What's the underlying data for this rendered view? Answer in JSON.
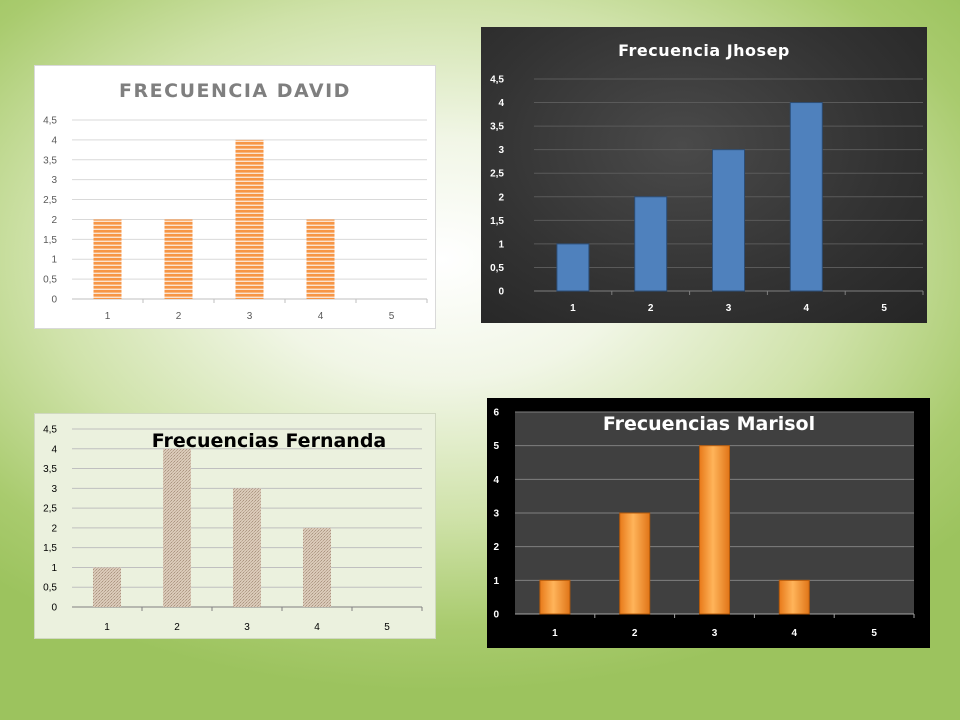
{
  "chart_data": [
    {
      "id": "david",
      "type": "bar",
      "title": "FRECUENCIA DAVID",
      "categories": [
        "1",
        "2",
        "3",
        "4",
        "5"
      ],
      "values": [
        2,
        2,
        4,
        2,
        0
      ],
      "ylim": [
        0,
        4.5
      ],
      "yticks": [
        "0",
        "0,5",
        "1",
        "1,5",
        "2",
        "2,5",
        "3",
        "3,5",
        "4",
        "4,5"
      ],
      "grid": true,
      "colors": {
        "background": "#ffffff",
        "bar": "#f79646",
        "bar_stripe": "#fbe3cf",
        "grid": "#d9d9d9",
        "text": "#595959",
        "title": "#7f7f7f"
      }
    },
    {
      "id": "jhosep",
      "type": "bar",
      "title": "Frecuencia  Jhosep",
      "categories": [
        "1",
        "2",
        "3",
        "4",
        "5"
      ],
      "values": [
        1,
        2,
        3,
        4,
        0
      ],
      "ylim": [
        0,
        4.5
      ],
      "yticks": [
        "0",
        "0,5",
        "1",
        "1,5",
        "2",
        "2,5",
        "3",
        "3,5",
        "4",
        "4,5"
      ],
      "grid": true,
      "colors": {
        "background": "#3a3a3a",
        "bar": "#4f81bd",
        "grid": "#5a5a5a",
        "text": "#ffffff",
        "title": "#ffffff"
      }
    },
    {
      "id": "fernanda",
      "type": "bar",
      "title": "Frecuencias Fernanda",
      "categories": [
        "1",
        "2",
        "3",
        "4",
        "5"
      ],
      "values": [
        1,
        4,
        3,
        2,
        0
      ],
      "ylim": [
        0,
        4.5
      ],
      "yticks": [
        "0",
        "0,5",
        "1",
        "1,5",
        "2",
        "2,5",
        "3",
        "3,5",
        "4",
        "4,5"
      ],
      "grid": true,
      "colors": {
        "background": "#ebf1de",
        "bar": "#d9c6b4",
        "bar_texture": "#b8a38f",
        "grid": "#bfbfbf",
        "text": "#000000",
        "title": "#000000"
      }
    },
    {
      "id": "marisol",
      "type": "bar",
      "title": "Frecuencias Marisol",
      "categories": [
        "1",
        "2",
        "3",
        "4",
        "5"
      ],
      "values": [
        1,
        3,
        5,
        1,
        0
      ],
      "ylim": [
        0,
        6
      ],
      "yticks": [
        "0",
        "1",
        "2",
        "3",
        "4",
        "5",
        "6"
      ],
      "grid": true,
      "colors": {
        "background": "#000000",
        "plot": "#404040",
        "bar": "#f79646",
        "bar_light": "#ffb45a",
        "grid": "#7f7f7f",
        "text": "#ffffff",
        "title": "#ffffff"
      }
    }
  ]
}
